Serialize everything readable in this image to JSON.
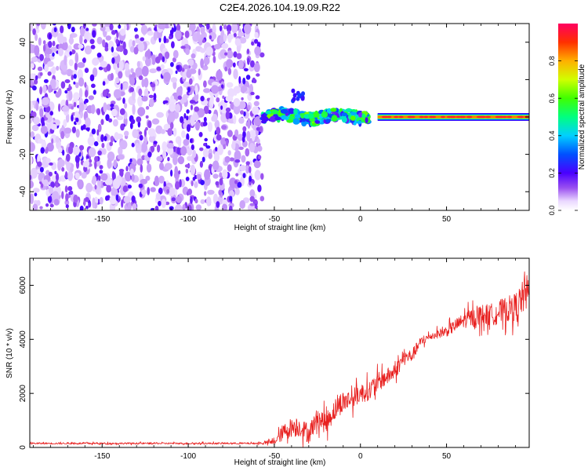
{
  "title": "C2E4.2026.104.19.09.R22",
  "chart_data": [
    {
      "type": "heatmap",
      "name": "spectrogram",
      "xlabel": "Height of straight line (km)",
      "ylabel": "Frequency (Hz)",
      "xlim": [
        -192,
        98
      ],
      "ylim": [
        -50,
        50
      ],
      "x_ticks": [
        -150,
        -100,
        -50,
        0,
        50
      ],
      "y_ticks": [
        -40,
        -20,
        0,
        20,
        40
      ],
      "noise_region_x": [
        -192,
        -57
      ],
      "transition_region_x": [
        -57,
        5
      ],
      "signal_x_start": 10,
      "signal_frequency_hz": 0,
      "colorbar": {
        "label": "Normalized spectral amplitude",
        "range": [
          0.0,
          1.0
        ],
        "ticks": [
          0.0,
          0.2,
          0.4,
          0.6,
          0.8
        ],
        "tick_labels": [
          "0.0",
          "0.2",
          "0.4",
          "0.6",
          "0.8"
        ]
      }
    },
    {
      "type": "line",
      "name": "snr",
      "xlabel": "Height of straight line (km)",
      "ylabel": "SNR (10 * v/v)",
      "xlim": [
        -192,
        98
      ],
      "ylim": [
        0,
        7000
      ],
      "x_ticks": [
        -150,
        -100,
        -50,
        0,
        50
      ],
      "y_ticks": [
        0,
        2000,
        4000,
        6000
      ],
      "color": "#e8201f",
      "series": [
        {
          "name": "SNR",
          "x": [
            -192,
            -150,
            -100,
            -60,
            -50,
            -45,
            -40,
            -35,
            -30,
            -25,
            -20,
            -15,
            -10,
            -5,
            0,
            5,
            10,
            15,
            20,
            25,
            30,
            35,
            40,
            45,
            50,
            55,
            60,
            65,
            70,
            75,
            80,
            85,
            90,
            95,
            98
          ],
          "values": [
            150,
            150,
            150,
            150,
            200,
            550,
            750,
            750,
            500,
            1100,
            900,
            1400,
            1700,
            1800,
            2000,
            2100,
            2400,
            2600,
            2800,
            3300,
            3400,
            3900,
            4100,
            4200,
            4300,
            4500,
            4700,
            4800,
            4900,
            4900,
            5000,
            5100,
            5200,
            5600,
            5800
          ],
          "noise_amplitude": [
            40,
            40,
            40,
            40,
            120,
            400,
            450,
            450,
            450,
            450,
            500,
            500,
            500,
            450,
            450,
            450,
            450,
            400,
            350,
            350,
            300,
            250,
            150,
            200,
            250,
            300,
            350,
            450,
            500,
            500,
            550,
            600,
            650,
            800,
            900
          ]
        }
      ]
    }
  ]
}
